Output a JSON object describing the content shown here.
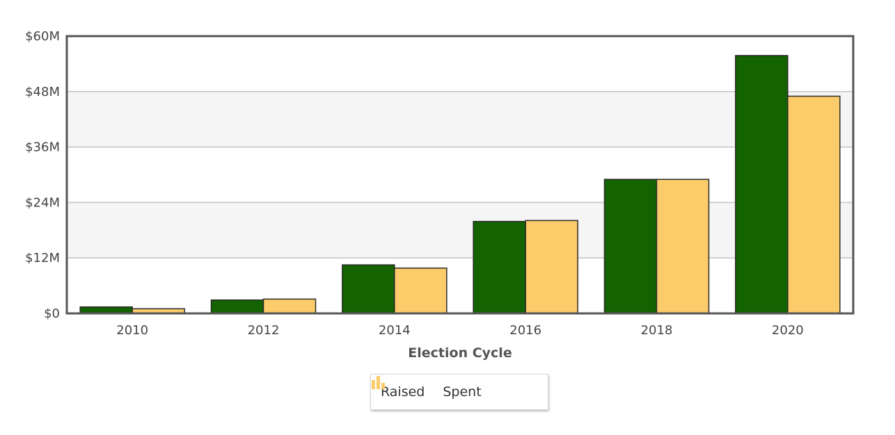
{
  "chart_data": {
    "type": "bar",
    "xlabel": "Election Cycle",
    "ylabel": "",
    "categories": [
      "2010",
      "2012",
      "2014",
      "2016",
      "2018",
      "2020"
    ],
    "series": [
      {
        "name": "Raised",
        "values": [
          1.4,
          2.9,
          10.5,
          19.9,
          29.0,
          55.8
        ],
        "color": "#136300"
      },
      {
        "name": "Spent",
        "values": [
          1.0,
          3.1,
          9.8,
          20.1,
          29.0,
          47.0
        ],
        "color": "#fdcc6a"
      }
    ],
    "ylim": [
      0,
      60
    ],
    "yticks": [
      0,
      12,
      24,
      36,
      48,
      60
    ],
    "ytick_labels": [
      "$0",
      "$12M",
      "$24M",
      "$36M",
      "$48M",
      "$60M"
    ],
    "grid": true,
    "legend_position": "bottom-center",
    "band_color": "#f5f5f5"
  }
}
